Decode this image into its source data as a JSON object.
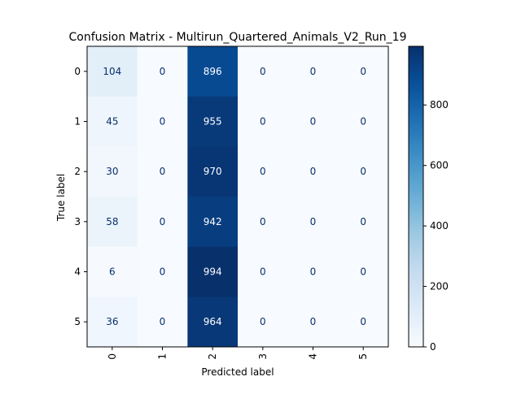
{
  "chart_data": {
    "type": "heatmap",
    "title": "Confusion Matrix - Multirun_Quartered_Animals_V2_Run_19",
    "xlabel": "Predicted label",
    "ylabel": "True label",
    "x_categories": [
      "0",
      "1",
      "2",
      "3",
      "4",
      "5"
    ],
    "y_categories": [
      "0",
      "1",
      "2",
      "3",
      "4",
      "5"
    ],
    "matrix": [
      [
        104,
        0,
        896,
        0,
        0,
        0
      ],
      [
        45,
        0,
        955,
        0,
        0,
        0
      ],
      [
        30,
        0,
        970,
        0,
        0,
        0
      ],
      [
        58,
        0,
        942,
        0,
        0,
        0
      ],
      [
        6,
        0,
        994,
        0,
        0,
        0
      ],
      [
        36,
        0,
        964,
        0,
        0,
        0
      ]
    ],
    "colormap": "Blues",
    "colorbar": {
      "range": [
        0,
        994
      ],
      "ticks": [
        0,
        200,
        400,
        600,
        800
      ]
    },
    "x_tick_rotation": "vertical",
    "grid": false
  }
}
